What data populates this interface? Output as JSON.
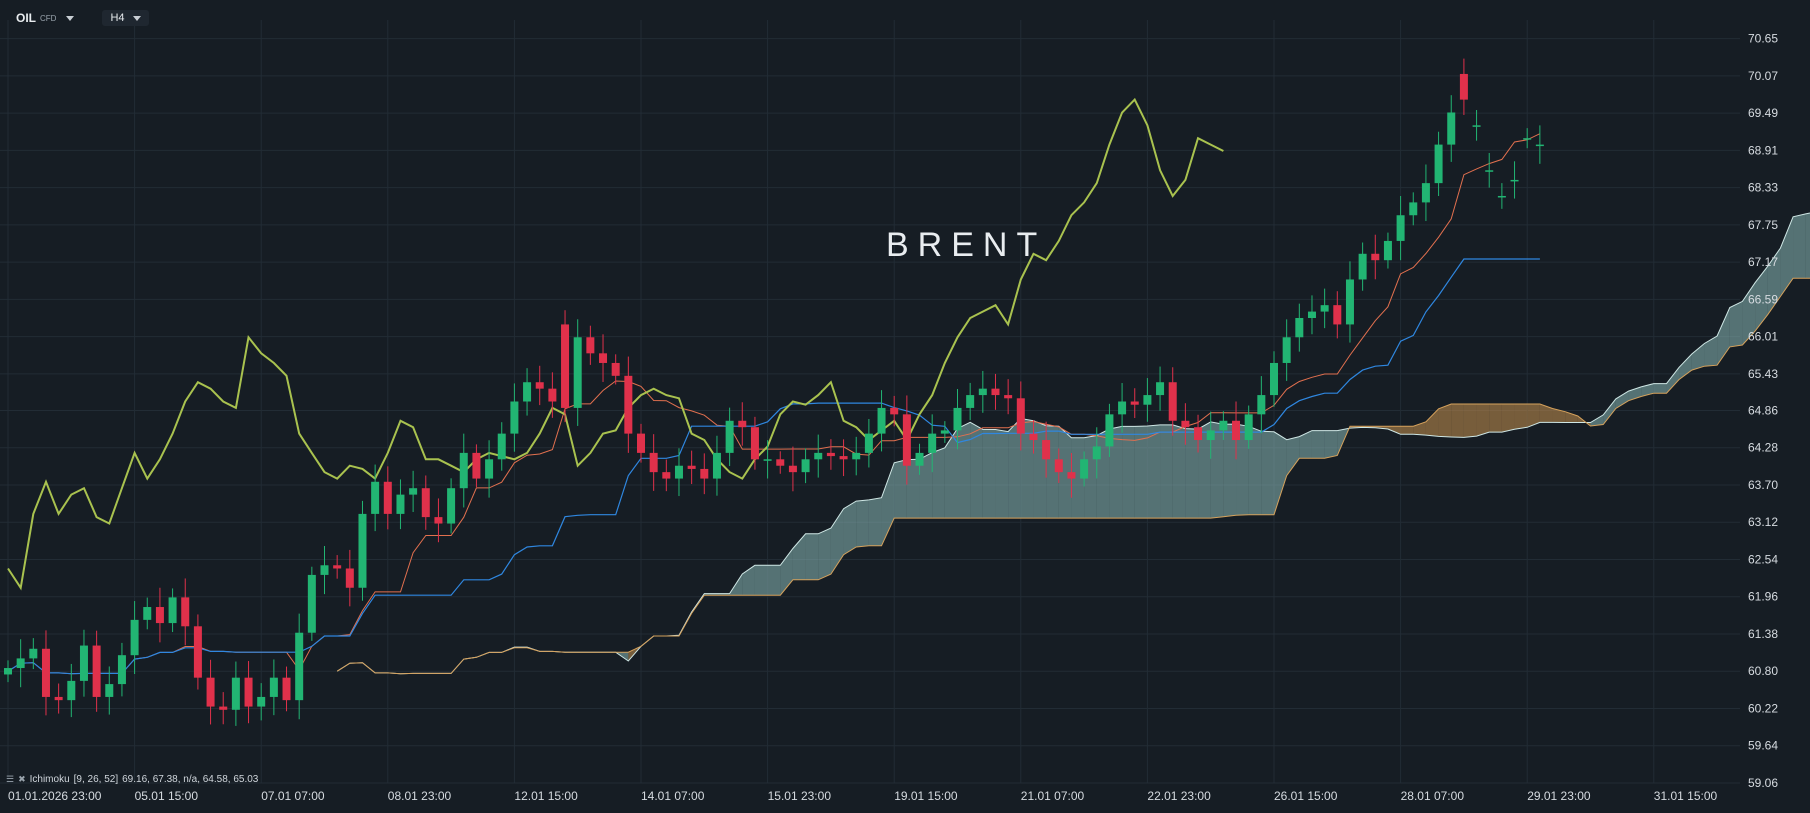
{
  "toolbar": {
    "symbol": "OIL",
    "symbol_type": "CFD",
    "timeframe": "H4"
  },
  "watermark": "BRENT",
  "indicator_legend": {
    "name": "Ichimoku",
    "params": "[9, 26, 52]",
    "values": "69.16, 67.38, n/a, 64.58, 65.03"
  },
  "colors": {
    "background": "#161d24",
    "grid": "#222c35",
    "up": "#22b573",
    "down": "#e0314b",
    "tenkan": "#e2704f",
    "kijun": "#2f87e0",
    "chikou": "#a9c24f",
    "cloud_bull": "#8ab8b6",
    "cloud_bear": "#c8914e",
    "span_a": "#cfe7e5",
    "span_b": "#d6a25c"
  },
  "chart_data": {
    "type": "candlestick",
    "title": "BRENT",
    "ylim": [
      59.06,
      70.94
    ],
    "y_ticks": [
      70.65,
      70.07,
      69.49,
      68.91,
      68.33,
      67.75,
      67.17,
      66.59,
      66.01,
      65.43,
      64.86,
      64.28,
      63.7,
      63.12,
      62.54,
      61.96,
      61.38,
      60.8,
      60.22,
      59.64,
      59.06
    ],
    "x_ticks": [
      {
        "bar": 0,
        "label": "01.01.2026  23:00"
      },
      {
        "bar": 10,
        "label": "05.01  15:00"
      },
      {
        "bar": 20,
        "label": "07.01  07:00"
      },
      {
        "bar": 30,
        "label": "08.01  23:00"
      },
      {
        "bar": 40,
        "label": "12.01  15:00"
      },
      {
        "bar": 50,
        "label": "14.01  07:00"
      },
      {
        "bar": 60,
        "label": "15.01  23:00"
      },
      {
        "bar": 70,
        "label": "19.01  15:00"
      },
      {
        "bar": 80,
        "label": "21.01  07:00"
      },
      {
        "bar": 90,
        "label": "22.01  23:00"
      },
      {
        "bar": 100,
        "label": "26.01  15:00"
      },
      {
        "bar": 110,
        "label": "28.01  07:00"
      },
      {
        "bar": 120,
        "label": "29.01  23:00"
      },
      {
        "bar": 130,
        "label": "31.01  15:00"
      }
    ],
    "candles_close": [
      60.85,
      61.0,
      61.15,
      60.4,
      60.35,
      60.65,
      61.2,
      60.4,
      60.6,
      61.05,
      61.6,
      61.8,
      61.55,
      61.95,
      61.5,
      60.7,
      60.25,
      60.2,
      60.7,
      60.25,
      60.4,
      60.7,
      60.35,
      61.4,
      62.3,
      62.45,
      62.4,
      62.1,
      63.25,
      63.75,
      63.25,
      63.55,
      63.65,
      63.2,
      63.1,
      63.65,
      64.2,
      63.8,
      64.1,
      64.5,
      65.0,
      65.3,
      65.2,
      65.0,
      64.9,
      66.0,
      65.75,
      65.6,
      65.4,
      64.5,
      64.2,
      63.9,
      63.8,
      64.0,
      63.95,
      63.8,
      64.2,
      64.7,
      64.6,
      64.1,
      64.1,
      64.0,
      63.9,
      64.1,
      64.2,
      64.15,
      64.1,
      64.2,
      64.5,
      64.9,
      64.8,
      64.0,
      64.2,
      64.5,
      64.55,
      64.9,
      65.1,
      65.2,
      65.1,
      65.05,
      64.5,
      64.4,
      64.1,
      63.9,
      63.8,
      64.1,
      64.3,
      64.8,
      65.0,
      64.95,
      65.1,
      65.3,
      64.7,
      64.6,
      64.4,
      64.55,
      64.7,
      64.4,
      64.8,
      65.1,
      65.6,
      66.0,
      66.3,
      66.4,
      66.5,
      66.2,
      66.9,
      67.3,
      67.2,
      67.5,
      67.9,
      68.1,
      68.4,
      69.0,
      69.5,
      69.7,
      69.3,
      68.6,
      68.2,
      68.45,
      69.1,
      69.0,
      68.9
    ],
    "candles_open": [
      60.75,
      60.85,
      61.0,
      61.15,
      60.4,
      60.35,
      60.65,
      61.2,
      60.4,
      60.6,
      61.05,
      61.6,
      61.8,
      61.55,
      61.95,
      61.5,
      60.7,
      60.25,
      60.2,
      60.7,
      60.25,
      60.4,
      60.7,
      60.35,
      61.4,
      62.3,
      62.45,
      62.4,
      62.1,
      63.25,
      63.75,
      63.25,
      63.55,
      63.65,
      63.2,
      63.1,
      63.65,
      64.2,
      63.8,
      64.1,
      64.5,
      65.0,
      65.3,
      65.2,
      66.2,
      64.9,
      66.0,
      65.75,
      65.6,
      65.4,
      64.5,
      64.2,
      63.9,
      63.8,
      64.0,
      63.95,
      63.8,
      64.2,
      64.7,
      64.6,
      64.1,
      64.1,
      64.0,
      63.9,
      64.1,
      64.2,
      64.15,
      64.1,
      64.2,
      64.5,
      64.9,
      64.8,
      64.0,
      64.2,
      64.5,
      64.55,
      64.9,
      65.1,
      65.2,
      65.1,
      65.05,
      64.5,
      64.4,
      64.1,
      63.9,
      63.8,
      64.1,
      64.3,
      64.8,
      65.0,
      64.95,
      65.1,
      65.3,
      64.7,
      64.6,
      64.4,
      64.55,
      64.7,
      64.4,
      64.8,
      65.1,
      65.6,
      66.0,
      66.3,
      66.4,
      66.5,
      66.2,
      66.9,
      67.3,
      67.2,
      67.5,
      67.9,
      68.1,
      68.4,
      69.0,
      70.1,
      69.3,
      68.6,
      68.2,
      68.45,
      69.1,
      69.0
    ]
  }
}
